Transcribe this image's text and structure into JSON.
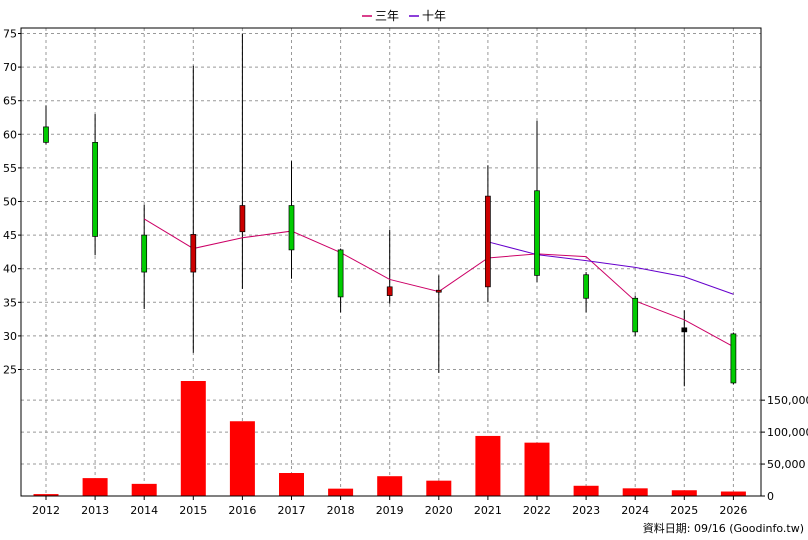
{
  "chart_data": {
    "type": "candlestick",
    "legend": {
      "placement": "top-center",
      "entries": [
        {
          "label": "三年",
          "color": "#cc0066"
        },
        {
          "label": "十年",
          "color": "#6600cc"
        }
      ]
    },
    "categories": [
      "2012",
      "2013",
      "2014",
      "2015",
      "2016",
      "2017",
      "2018",
      "2019",
      "2020",
      "2021",
      "2022",
      "2023",
      "2024",
      "2025",
      "2026"
    ],
    "price_axis": {
      "range": [
        22,
        76
      ],
      "ticks": [
        25,
        30,
        35,
        40,
        45,
        50,
        55,
        60,
        65,
        70,
        75
      ]
    },
    "volume_axis": {
      "range": [
        0,
        180000
      ],
      "ticks": [
        0,
        50000,
        100000,
        150000
      ],
      "tick_labels": [
        "0",
        "50,000",
        "100,000",
        "150,000"
      ]
    },
    "grid": true,
    "candles": [
      {
        "year": "2012",
        "open": 58.8,
        "high": 64.3,
        "low": 58.5,
        "close": 61.1,
        "color": "#00cc00"
      },
      {
        "year": "2013",
        "open": 44.8,
        "high": 63.0,
        "low": 42.0,
        "close": 58.8,
        "color": "#00cc00"
      },
      {
        "year": "2014",
        "open": 39.5,
        "high": 49.5,
        "low": 34.0,
        "close": 45.0,
        "color": "#00cc00"
      },
      {
        "year": "2015",
        "open": 45.1,
        "high": 70.2,
        "low": 27.5,
        "close": 39.5,
        "color": "#cc0000"
      },
      {
        "year": "2016",
        "open": 49.4,
        "high": 75.0,
        "low": 37.0,
        "close": 45.5,
        "color": "#cc0000"
      },
      {
        "year": "2017",
        "open": 42.8,
        "high": 56.0,
        "low": 38.5,
        "close": 49.4,
        "color": "#00cc00"
      },
      {
        "year": "2018",
        "open": 35.8,
        "high": 43.0,
        "low": 33.5,
        "close": 42.8,
        "color": "#00cc00"
      },
      {
        "year": "2019",
        "open": 37.3,
        "high": 45.8,
        "low": 34.8,
        "close": 36.0,
        "color": "#cc0000"
      },
      {
        "year": "2020",
        "open": 36.8,
        "high": 39.0,
        "low": 24.5,
        "close": 36.6,
        "color": "#cc0000"
      },
      {
        "year": "2021",
        "open": 50.8,
        "high": 55.4,
        "low": 35.0,
        "close": 37.3,
        "color": "#cc0000"
      },
      {
        "year": "2022",
        "open": 39.0,
        "high": 62.0,
        "low": 38.0,
        "close": 51.6,
        "color": "#00cc00"
      },
      {
        "year": "2023",
        "open": 35.6,
        "high": 39.5,
        "low": 33.5,
        "close": 39.1,
        "color": "#00cc00"
      },
      {
        "year": "2024",
        "open": 30.6,
        "high": 36.0,
        "low": 30.0,
        "close": 35.6,
        "color": "#00cc00"
      },
      {
        "year": "2025",
        "open": 31.2,
        "high": 33.8,
        "low": 22.5,
        "close": 30.6,
        "color": "#000000"
      },
      {
        "year": "2026",
        "open": 23.0,
        "high": 30.5,
        "low": 22.8,
        "close": 30.3,
        "color": "#00cc00"
      }
    ],
    "series": [
      {
        "name": "三年",
        "color": "#cc0066",
        "x": [
          "2014",
          "2015",
          "2016",
          "2017",
          "2018",
          "2019",
          "2020",
          "2021",
          "2022",
          "2023",
          "2024",
          "2025",
          "2026"
        ],
        "values": [
          47.4,
          43.0,
          44.6,
          45.6,
          42.4,
          38.4,
          36.6,
          41.6,
          42.2,
          41.8,
          35.2,
          32.4,
          28.4
        ]
      },
      {
        "name": "十年",
        "color": "#6600cc",
        "x": [
          "2021",
          "2022",
          "2023",
          "2024",
          "2025",
          "2026"
        ],
        "values": [
          44.0,
          42.1,
          41.2,
          40.2,
          38.8,
          36.2
        ]
      }
    ],
    "volume": {
      "color": "#ff0000",
      "values": [
        3000,
        28000,
        19000,
        180000,
        117000,
        36000,
        11500,
        31000,
        24000,
        94000,
        83500,
        16000,
        12000,
        9000,
        7000
      ]
    },
    "footer": "資料日期: 09/16  (Goodinfo.tw)"
  }
}
